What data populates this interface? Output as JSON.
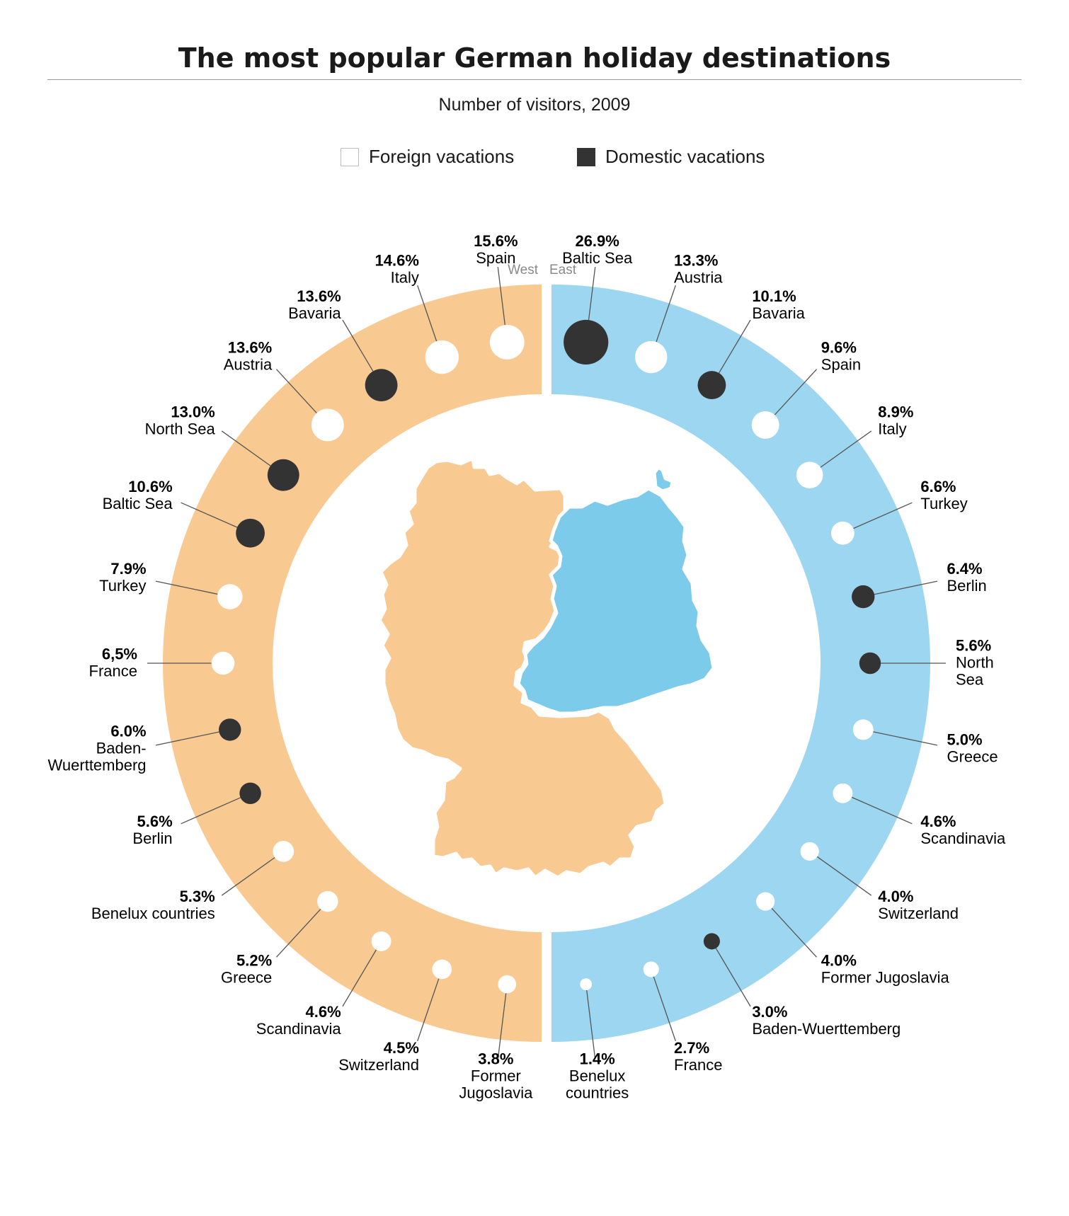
{
  "title": "The most popular German holiday destinations",
  "subtitle": "Number of visitors, 2009",
  "legend": {
    "foreign": "Foreign vacations",
    "domestic": "Domestic vacations"
  },
  "colors": {
    "west": "#f9c992",
    "east": "#9dd6f0",
    "east_map": "#7ccbea",
    "foreign": "#ffffff",
    "domestic": "#333333"
  },
  "chart_data": {
    "type": "bubble-ring",
    "unit": "%",
    "groups": [
      {
        "name": "West",
        "items": [
          {
            "pct": "15.6%",
            "label": "Spain",
            "value": 15.6,
            "kind": "foreign"
          },
          {
            "pct": "14.6%",
            "label": "Italy",
            "value": 14.6,
            "kind": "foreign"
          },
          {
            "pct": "13.6%",
            "label": "Bavaria",
            "value": 13.6,
            "kind": "domestic"
          },
          {
            "pct": "13.6%",
            "label": "Austria",
            "value": 13.6,
            "kind": "foreign"
          },
          {
            "pct": "13.0%",
            "label": "North Sea",
            "value": 13.0,
            "kind": "domestic"
          },
          {
            "pct": "10.6%",
            "label": "Baltic Sea",
            "value": 10.6,
            "kind": "domestic"
          },
          {
            "pct": "7.9%",
            "label": "Turkey",
            "value": 7.9,
            "kind": "foreign"
          },
          {
            "pct": "6,5%",
            "label": "France",
            "value": 6.5,
            "kind": "foreign"
          },
          {
            "pct": "6.0%",
            "label": "Baden-\nWuerttemberg",
            "value": 6.0,
            "kind": "domestic"
          },
          {
            "pct": "5.6%",
            "label": "Berlin",
            "value": 5.6,
            "kind": "domestic"
          },
          {
            "pct": "5.3%",
            "label": "Benelux countries",
            "value": 5.3,
            "kind": "foreign"
          },
          {
            "pct": "5.2%",
            "label": "Greece",
            "value": 5.2,
            "kind": "foreign"
          },
          {
            "pct": "4.6%",
            "label": "Scandinavia",
            "value": 4.6,
            "kind": "foreign"
          },
          {
            "pct": "4.5%",
            "label": "Switzerland",
            "value": 4.5,
            "kind": "foreign"
          },
          {
            "pct": "3.8%",
            "label": "Former\nJugoslavia",
            "value": 3.8,
            "kind": "foreign"
          }
        ]
      },
      {
        "name": "East",
        "items": [
          {
            "pct": "26.9%",
            "label": "Baltic Sea",
            "value": 26.9,
            "kind": "domestic"
          },
          {
            "pct": "13.3%",
            "label": "Austria",
            "value": 13.3,
            "kind": "foreign"
          },
          {
            "pct": "10.1%",
            "label": "Bavaria",
            "value": 10.1,
            "kind": "domestic"
          },
          {
            "pct": "9.6%",
            "label": "Spain",
            "value": 9.6,
            "kind": "foreign"
          },
          {
            "pct": "8.9%",
            "label": "Italy",
            "value": 8.9,
            "kind": "foreign"
          },
          {
            "pct": "6.6%",
            "label": "Turkey",
            "value": 6.6,
            "kind": "foreign"
          },
          {
            "pct": "6.4%",
            "label": "Berlin",
            "value": 6.4,
            "kind": "domestic"
          },
          {
            "pct": "5.6%",
            "label": "North\nSea",
            "value": 5.6,
            "kind": "domestic"
          },
          {
            "pct": "5.0%",
            "label": "Greece",
            "value": 5.0,
            "kind": "foreign"
          },
          {
            "pct": "4.6%",
            "label": "Scandinavia",
            "value": 4.6,
            "kind": "foreign"
          },
          {
            "pct": "4.0%",
            "label": "Switzerland",
            "value": 4.0,
            "kind": "foreign"
          },
          {
            "pct": "4.0%",
            "label": "Former Jugoslavia",
            "value": 4.0,
            "kind": "foreign"
          },
          {
            "pct": "3.0%",
            "label": "Baden-Wuerttemberg",
            "value": 3.0,
            "kind": "domestic"
          },
          {
            "pct": "2.7%",
            "label": "France",
            "value": 2.7,
            "kind": "foreign"
          },
          {
            "pct": "1.4%",
            "label": "Benelux\ncountries",
            "value": 1.4,
            "kind": "foreign"
          }
        ]
      }
    ]
  }
}
